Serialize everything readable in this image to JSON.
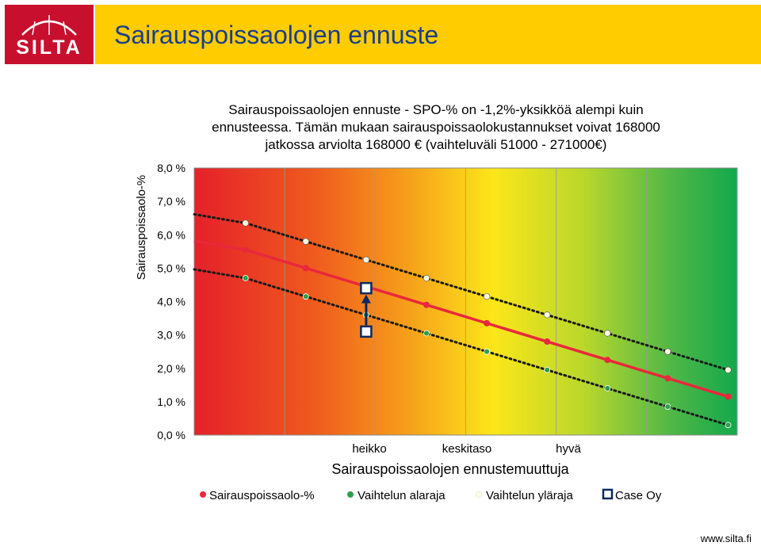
{
  "header": {
    "logo_text": "SILTA",
    "title": "Sairauspoissaolojen ennuste"
  },
  "caption": {
    "line1": "Sairauspoissaolojen ennuste - SPO-% on -1,2%-yksikköä alempi kuin",
    "line2": "ennusteessa. Tämän mukaan sairauspoissaolokustannukset voivat 168000",
    "line3": "jatkossa arviolta 168000 € (vaihteluväli 51000 - 271000€)"
  },
  "footer": {
    "url": "www.silta.fi"
  },
  "colors": {
    "title_band": "#ffcc00",
    "logo_bg": "#c8102e",
    "title_text": "#1a3e8c",
    "series_main": "#e8283c",
    "series_low": "#2e9e4a",
    "series_high": "#fffbe0",
    "case_marker": "#0b2a5e"
  },
  "chart_data": {
    "type": "line",
    "title": "",
    "xlabel": "Sairauspoissaolojen ennustemuuttuja",
    "ylabel": "Sairauspoissaolo-%",
    "ylim": [
      0,
      8
    ],
    "yticks": [
      "0,0 %",
      "1,0 %",
      "2,0 %",
      "3,0 %",
      "4,0 %",
      "5,0 %",
      "6,0 %",
      "7,0 %",
      "8,0 %"
    ],
    "x_category_labels": [
      "heikko",
      "keskitaso",
      "hyvä"
    ],
    "x": [
      1,
      2,
      3,
      4,
      5,
      6,
      7,
      8,
      9
    ],
    "background": "gradient red-orange-yellow-green",
    "grid": true,
    "legend_position": "bottom",
    "series": [
      {
        "name": "Sairauspoissaolo-%",
        "values": [
          5.55,
          5.0,
          4.45,
          3.9,
          3.35,
          2.8,
          2.25,
          1.7,
          1.15
        ]
      },
      {
        "name": "Vaihtelun alaraja",
        "values": [
          4.7,
          4.15,
          3.6,
          3.05,
          2.5,
          1.95,
          1.4,
          0.85,
          0.3
        ]
      },
      {
        "name": "Vaihtelun yläraja",
        "values": [
          6.35,
          5.8,
          5.25,
          4.7,
          4.15,
          3.6,
          3.05,
          2.5,
          1.95
        ]
      },
      {
        "name": "Case Oy",
        "points": [
          {
            "x": 3,
            "y": 4.4
          },
          {
            "x": 3,
            "y": 3.1
          }
        ]
      }
    ]
  }
}
